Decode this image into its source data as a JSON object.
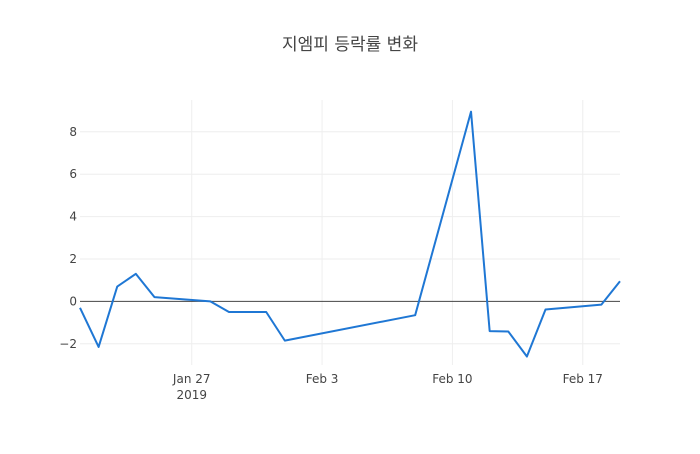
{
  "chart_data": {
    "type": "line",
    "title": "지엠피 등락률 변화",
    "xlabel": "",
    "ylabel": "",
    "x_axis_type": "date",
    "xlim": [
      "2019-01-21",
      "2019-02-19"
    ],
    "ylim": [
      -3.0,
      9.5
    ],
    "grid": true,
    "legend": "none",
    "x_ticks": [
      {
        "date": "2019-01-27",
        "label": "Jan 27",
        "sublabel": "2019"
      },
      {
        "date": "2019-02-03",
        "label": "Feb 3",
        "sublabel": ""
      },
      {
        "date": "2019-02-10",
        "label": "Feb 10",
        "sublabel": ""
      },
      {
        "date": "2019-02-17",
        "label": "Feb 17",
        "sublabel": ""
      }
    ],
    "y_ticks": [
      {
        "value": -2,
        "label": "−2"
      },
      {
        "value": 0,
        "label": "0"
      },
      {
        "value": 2,
        "label": "2"
      },
      {
        "value": 4,
        "label": "4"
      },
      {
        "value": 6,
        "label": "6"
      },
      {
        "value": 8,
        "label": "8"
      }
    ],
    "series": [
      {
        "color": "#1f77d4",
        "points": [
          {
            "x": "2019-01-21",
            "y": -0.3
          },
          {
            "x": "2019-01-22",
            "y": -2.15
          },
          {
            "x": "2019-01-23",
            "y": 0.7
          },
          {
            "x": "2019-01-24",
            "y": 1.3
          },
          {
            "x": "2019-01-25",
            "y": 0.2
          },
          {
            "x": "2019-01-28",
            "y": 0.0
          },
          {
            "x": "2019-01-29",
            "y": -0.5
          },
          {
            "x": "2019-01-31",
            "y": -0.5
          },
          {
            "x": "2019-02-01",
            "y": -1.85
          },
          {
            "x": "2019-02-08",
            "y": -0.65
          },
          {
            "x": "2019-02-11",
            "y": 8.95
          },
          {
            "x": "2019-02-12",
            "y": -1.4
          },
          {
            "x": "2019-02-13",
            "y": -1.42
          },
          {
            "x": "2019-02-14",
            "y": -2.6
          },
          {
            "x": "2019-02-15",
            "y": -0.38
          },
          {
            "x": "2019-02-18",
            "y": -0.15
          },
          {
            "x": "2019-02-19",
            "y": 0.95
          }
        ]
      }
    ],
    "colors": {
      "line": "#1f77d4",
      "grid": "#eeeeee",
      "zero_line": "#444444",
      "text": "#444444"
    }
  }
}
